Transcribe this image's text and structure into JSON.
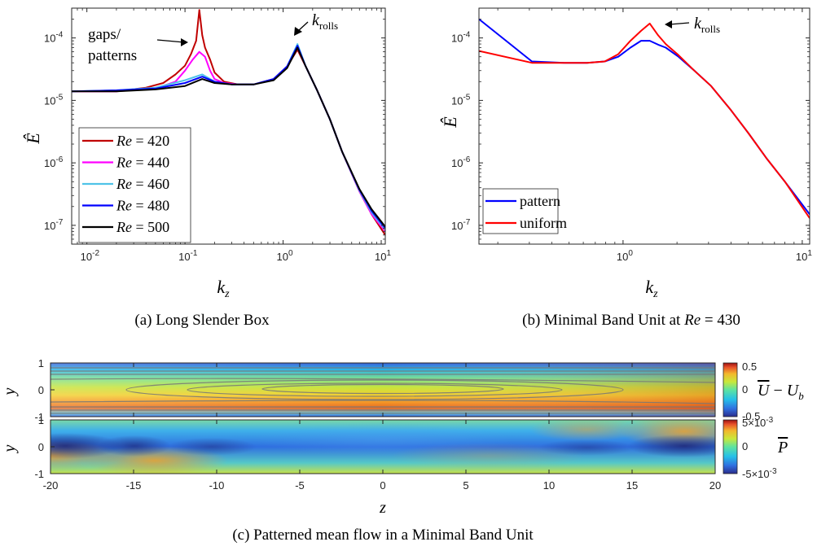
{
  "figure": {
    "caption_a": "(a) Long Slender Box",
    "caption_b": "(b) Minimal Band Unit at ",
    "caption_b_re": "Re",
    "caption_b_eq": " = 430",
    "caption_c": "(c) Patterned mean flow in a Minimal Band Unit"
  },
  "chart_data": [
    {
      "type": "line",
      "panel": "a",
      "title": "",
      "xlabel": "k_z",
      "ylabel": "Ê",
      "xscale": "log",
      "yscale": "log",
      "xlim": [
        0.007,
        11
      ],
      "ylim": [
        5e-08,
        0.0003
      ],
      "xticks": [
        0.01,
        0.1,
        1,
        10
      ],
      "xtick_labels": [
        {
          "base": "10",
          "exp": "-2"
        },
        {
          "base": "10",
          "exp": "-1"
        },
        {
          "base": "10",
          "exp": "0"
        },
        {
          "base": "10",
          "exp": "1"
        }
      ],
      "yticks": [
        1e-07,
        1e-06,
        1e-05,
        0.0001
      ],
      "ytick_labels": [
        {
          "base": "10",
          "exp": "-7"
        },
        {
          "base": "10",
          "exp": "-6"
        },
        {
          "base": "10",
          "exp": "-5"
        },
        {
          "base": "10",
          "exp": "-4"
        }
      ],
      "legend_position": "bottom-left",
      "annotations": [
        {
          "text_lines": [
            "gaps/",
            "patterns"
          ],
          "arrow_to": [
            0.14,
            0.000105
          ]
        },
        {
          "text": "k",
          "sub": "rolls",
          "arrow_to": [
            1.4,
            8e-05
          ]
        }
      ],
      "series": [
        {
          "name": "Re = 420",
          "label_re": "Re",
          "label_val": " = 420",
          "color": "#c00000",
          "x": [
            0.007,
            0.02,
            0.04,
            0.06,
            0.08,
            0.1,
            0.115,
            0.13,
            0.14,
            0.15,
            0.16,
            0.18,
            0.2,
            0.25,
            0.35,
            0.5,
            0.8,
            1.1,
            1.4,
            1.7,
            2.2,
            3,
            4,
            6,
            8,
            11
          ],
          "y": [
            1.4e-05,
            1.4e-05,
            1.6e-05,
            1.9e-05,
            2.6e-05,
            3.6e-05,
            5.5e-05,
            9e-05,
            0.00028,
            0.00011,
            7e-05,
            4.5e-05,
            2.8e-05,
            2e-05,
            1.8e-05,
            1.8e-05,
            2.2e-05,
            3.5e-05,
            6.5e-05,
            3.5e-05,
            1.5e-05,
            5e-06,
            1.5e-06,
            3.5e-07,
            1.5e-07,
            7e-08
          ]
        },
        {
          "name": "Re = 440",
          "label_re": "Re",
          "label_val": " = 440",
          "color": "#ff00ff",
          "x": [
            0.007,
            0.02,
            0.05,
            0.08,
            0.1,
            0.12,
            0.14,
            0.16,
            0.18,
            0.2,
            0.25,
            0.35,
            0.5,
            0.8,
            1.1,
            1.4,
            1.7,
            2.2,
            3,
            4,
            6,
            8,
            11
          ],
          "y": [
            1.4e-05,
            1.4e-05,
            1.55e-05,
            2e-05,
            3e-05,
            4.5e-05,
            6e-05,
            5e-05,
            3e-05,
            2.2e-05,
            1.9e-05,
            1.8e-05,
            1.8e-05,
            2.2e-05,
            3.5e-05,
            7e-05,
            3.5e-05,
            1.5e-05,
            5e-06,
            1.5e-06,
            3.5e-07,
            1.5e-07,
            8e-08
          ]
        },
        {
          "name": "Re = 460",
          "label_re": "Re",
          "label_val": " = 460",
          "color": "#4fc3e8",
          "x": [
            0.007,
            0.02,
            0.05,
            0.1,
            0.15,
            0.2,
            0.3,
            0.5,
            0.8,
            1.1,
            1.4,
            1.7,
            2.2,
            3,
            4,
            6,
            8,
            11
          ],
          "y": [
            1.4e-05,
            1.45e-05,
            1.6e-05,
            2.1e-05,
            2.6e-05,
            2e-05,
            1.8e-05,
            1.8e-05,
            2.2e-05,
            3.5e-05,
            8e-05,
            3.5e-05,
            1.5e-05,
            5e-06,
            1.5e-06,
            3.6e-07,
            1.6e-07,
            8.5e-08
          ]
        },
        {
          "name": "Re = 480",
          "label_re": "Re",
          "label_val": " = 480",
          "color": "#0000ff",
          "x": [
            0.007,
            0.02,
            0.05,
            0.1,
            0.15,
            0.2,
            0.3,
            0.5,
            0.8,
            1.1,
            1.4,
            1.7,
            2.2,
            3,
            4,
            6,
            8,
            11
          ],
          "y": [
            1.4e-05,
            1.45e-05,
            1.55e-05,
            1.9e-05,
            2.4e-05,
            2e-05,
            1.8e-05,
            1.8e-05,
            2.2e-05,
            3.5e-05,
            7.5e-05,
            3.5e-05,
            1.5e-05,
            5e-06,
            1.5e-06,
            3.7e-07,
            1.7e-07,
            9e-08
          ]
        },
        {
          "name": "Re = 500",
          "label_re": "Re",
          "label_val": " = 500",
          "color": "#000000",
          "x": [
            0.007,
            0.02,
            0.05,
            0.1,
            0.15,
            0.2,
            0.3,
            0.5,
            0.8,
            1.1,
            1.4,
            1.7,
            2.2,
            3,
            4,
            6,
            8,
            11
          ],
          "y": [
            1.4e-05,
            1.4e-05,
            1.5e-05,
            1.7e-05,
            2.2e-05,
            1.9e-05,
            1.8e-05,
            1.8e-05,
            2.1e-05,
            3.3e-05,
            7e-05,
            3.5e-05,
            1.5e-05,
            5e-06,
            1.5e-06,
            3.8e-07,
            1.8e-07,
            9.5e-08
          ]
        }
      ]
    },
    {
      "type": "line",
      "panel": "b",
      "title": "",
      "xlabel": "k_z",
      "ylabel": "Ê",
      "xscale": "log",
      "yscale": "log",
      "xlim": [
        0.157,
        11
      ],
      "ylim": [
        5e-08,
        0.0003
      ],
      "xticks": [
        1,
        10
      ],
      "xtick_labels": [
        {
          "base": "10",
          "exp": "0"
        },
        {
          "base": "10",
          "exp": "1"
        }
      ],
      "yticks": [
        1e-07,
        1e-06,
        1e-05,
        0.0001
      ],
      "ytick_labels": [
        {
          "base": "10",
          "exp": "-7"
        },
        {
          "base": "10",
          "exp": "-6"
        },
        {
          "base": "10",
          "exp": "-5"
        },
        {
          "base": "10",
          "exp": "-4"
        }
      ],
      "legend_position": "bottom-left",
      "annotations": [
        {
          "text": "k",
          "sub": "rolls",
          "arrow_to": [
            1.45,
            0.000165
          ]
        }
      ],
      "series": [
        {
          "name": "pattern",
          "color": "#0000ff",
          "x": [
            0.157,
            0.31,
            0.47,
            0.63,
            0.79,
            0.94,
            1.1,
            1.26,
            1.41,
            1.57,
            1.73,
            2.04,
            2.5,
            3.1,
            4,
            5,
            6.3,
            8,
            11
          ],
          "y": [
            0.0002,
            4.2e-05,
            4e-05,
            4e-05,
            4.2e-05,
            5e-05,
            7e-05,
            9e-05,
            9e-05,
            7.8e-05,
            7e-05,
            5e-05,
            3e-05,
            1.7e-05,
            7e-06,
            3e-06,
            1.2e-06,
            5e-07,
            1.5e-07
          ]
        },
        {
          "name": "uniform",
          "color": "#ff0000",
          "x": [
            0.157,
            0.31,
            0.47,
            0.63,
            0.79,
            0.94,
            1.1,
            1.26,
            1.41,
            1.57,
            1.73,
            2.04,
            2.5,
            3.1,
            4,
            5,
            6.3,
            8,
            11
          ],
          "y": [
            6.2e-05,
            4e-05,
            4e-05,
            4e-05,
            4.2e-05,
            5.5e-05,
            9e-05,
            0.00013,
            0.00017,
            0.00011,
            8e-05,
            5.3e-05,
            3e-05,
            1.7e-05,
            7e-06,
            3e-06,
            1.2e-06,
            5e-07,
            1.3e-07
          ]
        }
      ]
    },
    {
      "type": "heatmap",
      "panel": "c-top",
      "title": "",
      "xlabel": "",
      "ylabel": "y",
      "xlim": [
        -20,
        20
      ],
      "ylim": [
        -1,
        1
      ],
      "yticks": [
        -1,
        0,
        1
      ],
      "colorbar_label": "U̅ − U_b",
      "colorbar_ticks": [
        "0.5",
        "0",
        "-0.5"
      ],
      "clim": [
        -0.5,
        0.5
      ],
      "has_contours": true
    },
    {
      "type": "heatmap",
      "panel": "c-bottom",
      "title": "",
      "xlabel": "z",
      "ylabel": "y",
      "xlim": [
        -20,
        20
      ],
      "ylim": [
        -1,
        1
      ],
      "xticks": [
        -20,
        -15,
        -10,
        -5,
        0,
        5,
        10,
        15,
        20
      ],
      "xtick_labels": [
        "-20",
        "-15",
        "-10",
        "-5",
        "0",
        "5",
        "10",
        "15",
        "20"
      ],
      "yticks": [
        -1,
        0,
        1
      ],
      "colorbar_label": "P̅",
      "colorbar_ticks": [
        {
          "mant": "5",
          "exp": "-3"
        },
        {
          "mant": "0",
          "exp": ""
        },
        {
          "mant": "-5",
          "exp": "-3"
        }
      ],
      "clim": [
        -0.005,
        0.005
      ],
      "has_contours": false
    }
  ]
}
